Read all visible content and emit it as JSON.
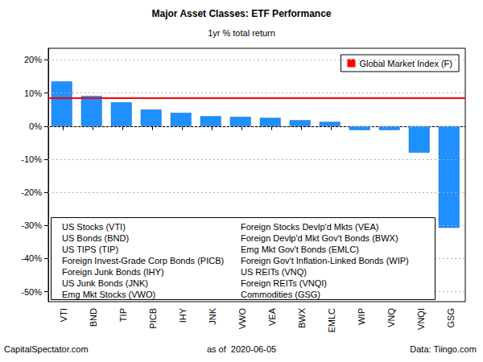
{
  "chart_data": {
    "type": "bar",
    "title": "Major Asset Classes: ETF Performance",
    "subtitle": "1yr % total return",
    "categories": [
      "VTI",
      "BND",
      "TIP",
      "PICB",
      "IHY",
      "JNK",
      "VWO",
      "VEA",
      "BWX",
      "EMLC",
      "WIP",
      "VNQ",
      "VNQI",
      "GSG"
    ],
    "values": [
      13.5,
      9.1,
      7.2,
      5.0,
      4.0,
      3.0,
      2.8,
      2.5,
      1.8,
      1.3,
      -1.2,
      -1.2,
      -8.0,
      -30.7
    ],
    "color": "#1e90ff",
    "ylim": [
      -53,
      23.5
    ],
    "yticks": [
      {
        "value": -50,
        "label": "-50%"
      },
      {
        "value": -40,
        "label": "-40%"
      },
      {
        "value": -30,
        "label": "-30%"
      },
      {
        "value": -20,
        "label": "-20%"
      },
      {
        "value": -10,
        "label": "-10%"
      },
      {
        "value": 0,
        "label": "0%"
      },
      {
        "value": 10,
        "label": "10%"
      },
      {
        "value": 20,
        "label": "20%"
      }
    ],
    "grid": true,
    "legend": "top-right",
    "reference_line": {
      "name": "Global Market Index (F)",
      "value": 8.5,
      "color": "#ff0000"
    },
    "key": {
      "left": [
        "US Stocks (VTI)",
        "US Bonds (BND)",
        "US TIPS (TIP)",
        "Foreign Invest-Grade Corp Bonds (PICB)",
        "Foreign Junk Bonds (IHY)",
        "US Junk Bonds (JNK)",
        "Emg Mkt Stocks (VWO)"
      ],
      "right": [
        "Foreign Stocks Devlp'd Mkts (VEA)",
        "Foreign Devlp'd Mkt Gov't Bonds (BWX)",
        "Emg Mkt Gov't Bonds (EMLC)",
        "Foreign Gov't Inflation-Linked Bonds (WIP)",
        "US REITs (VNQ)",
        "Foreign REITs (VNQI)",
        "Commodities (GSG)"
      ]
    },
    "footer": {
      "left": "CapitalSpectator.com",
      "center": "as of  2020-06-05",
      "right": "Data: Tiingo.com"
    }
  }
}
